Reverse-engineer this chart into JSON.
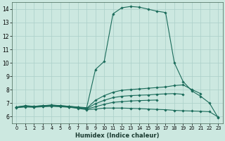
{
  "xlabel": "Humidex (Indice chaleur)",
  "xlim": [
    -0.5,
    23.5
  ],
  "ylim": [
    5.5,
    14.5
  ],
  "xticks": [
    0,
    1,
    2,
    3,
    4,
    5,
    6,
    7,
    8,
    9,
    10,
    11,
    12,
    13,
    14,
    15,
    16,
    17,
    18,
    19,
    20,
    21,
    22,
    23
  ],
  "yticks": [
    6,
    7,
    8,
    9,
    10,
    11,
    12,
    13,
    14
  ],
  "bg_color": "#cce8e0",
  "line_color": "#1a6b5a",
  "grid_color": "#aacfc8",
  "curves": [
    {
      "x": [
        0,
        1,
        2,
        3,
        4,
        5,
        6,
        7,
        8,
        9,
        10,
        11,
        12,
        13,
        14,
        15,
        16,
        17,
        18,
        19,
        20,
        21,
        22,
        23
      ],
      "y": [
        6.7,
        6.8,
        6.75,
        6.8,
        6.85,
        6.8,
        6.75,
        6.7,
        6.65,
        9.5,
        10.1,
        13.65,
        14.1,
        14.2,
        14.15,
        14.0,
        13.85,
        13.75,
        10.0,
        8.6,
        7.9,
        7.5,
        7.0,
        5.9
      ]
    },
    {
      "x": [
        0,
        1,
        2,
        3,
        4,
        5,
        6,
        7,
        8,
        9,
        10,
        11,
        12,
        13,
        14,
        15,
        16,
        17,
        18,
        19,
        20,
        21,
        22,
        23
      ],
      "y": [
        6.7,
        6.78,
        6.75,
        6.8,
        6.83,
        6.8,
        6.75,
        6.68,
        6.6,
        7.2,
        7.55,
        7.8,
        7.95,
        8.0,
        8.05,
        8.1,
        8.15,
        8.2,
        8.3,
        8.35,
        8.0,
        7.7,
        null,
        null
      ]
    },
    {
      "x": [
        0,
        1,
        2,
        3,
        4,
        5,
        6,
        7,
        8,
        9,
        10,
        11,
        12,
        13,
        14,
        15,
        16,
        17,
        18,
        19,
        20,
        21,
        22,
        23
      ],
      "y": [
        6.68,
        6.75,
        6.73,
        6.78,
        6.82,
        6.78,
        6.73,
        6.67,
        6.58,
        6.95,
        7.2,
        7.4,
        7.5,
        7.55,
        7.58,
        7.6,
        7.65,
        7.68,
        7.7,
        7.65,
        null,
        null,
        null,
        null
      ]
    },
    {
      "x": [
        0,
        1,
        2,
        3,
        4,
        5,
        6,
        7,
        8,
        9,
        10,
        11,
        12,
        13,
        14,
        15,
        16,
        17,
        18,
        19,
        20,
        21,
        22,
        23
      ],
      "y": [
        6.67,
        6.73,
        6.7,
        6.75,
        6.78,
        6.75,
        6.7,
        6.63,
        6.55,
        6.72,
        6.9,
        7.05,
        7.1,
        7.15,
        7.18,
        7.2,
        7.22,
        null,
        null,
        null,
        null,
        null,
        null,
        null
      ]
    },
    {
      "x": [
        0,
        1,
        2,
        3,
        4,
        5,
        6,
        7,
        8,
        9,
        10,
        11,
        12,
        13,
        14,
        15,
        16,
        17,
        18,
        19,
        20,
        21,
        22,
        23
      ],
      "y": [
        6.65,
        6.7,
        6.68,
        6.72,
        6.75,
        6.72,
        6.68,
        6.6,
        6.5,
        6.55,
        6.62,
        6.62,
        6.62,
        6.6,
        6.58,
        6.55,
        6.52,
        6.5,
        6.45,
        6.42,
        6.4,
        6.38,
        6.35,
        5.95
      ]
    }
  ]
}
